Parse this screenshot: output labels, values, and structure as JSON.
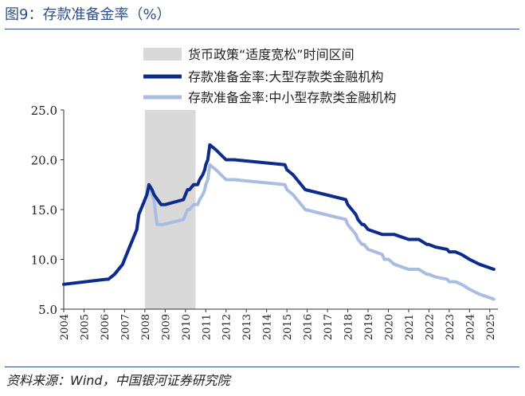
{
  "header": {
    "title": "图9：存款准备金率（%）"
  },
  "footer": {
    "source": "资料来源：Wind，中国银河证券研究院"
  },
  "chart_data": {
    "type": "line",
    "title": "",
    "xlabel": "",
    "ylabel": "",
    "ylim": [
      5,
      25
    ],
    "xlim": [
      2004,
      2025.4
    ],
    "y_ticks": [
      "5.0",
      "10.0",
      "15.0",
      "20.0",
      "25.0"
    ],
    "x_ticks": [
      "2004",
      "2005",
      "2006",
      "2007",
      "2008",
      "2009",
      "2010",
      "2011",
      "2012",
      "2013",
      "2014",
      "2015",
      "2016",
      "2017",
      "2018",
      "2019",
      "2020",
      "2021",
      "2022",
      "2023",
      "2024",
      "2025"
    ],
    "shaded_region": {
      "label": "货币政策“适度宽松”时间区间",
      "x_range": [
        2008.0,
        2010.5
      ],
      "color": "#d9d9d9"
    },
    "legend_position": "top",
    "series": [
      {
        "name": "存款准备金率:大型存款类金融机构",
        "color": "#0d2b8a",
        "x": [
          2004.0,
          2006.1,
          2006.2,
          2006.5,
          2006.9,
          2007.1,
          2007.3,
          2007.4,
          2007.6,
          2007.7,
          2007.8,
          2008.0,
          2008.1,
          2008.2,
          2008.35,
          2008.45,
          2008.8,
          2009.0,
          2009.9,
          2010.0,
          2010.1,
          2010.2,
          2010.4,
          2010.6,
          2010.7,
          2010.85,
          2010.95,
          2011.0,
          2011.1,
          2011.2,
          2011.5,
          2012.0,
          2012.4,
          2014.9,
          2015.0,
          2015.3,
          2015.5,
          2015.7,
          2015.9,
          2017.9,
          2018.0,
          2018.2,
          2018.4,
          2018.5,
          2018.7,
          2018.8,
          2019.0,
          2019.7,
          2019.8,
          2020.0,
          2020.3,
          2021.0,
          2021.5,
          2021.9,
          2022.0,
          2022.3,
          2022.9,
          2023.0,
          2023.3,
          2023.6,
          2024.0,
          2024.5,
          2025.2
        ],
        "values": [
          7.5,
          8.0,
          8.0,
          8.5,
          9.5,
          10.5,
          11.5,
          12.0,
          13.0,
          14.5,
          15.0,
          16.0,
          16.5,
          17.5,
          17.0,
          16.5,
          15.5,
          15.5,
          16.0,
          16.5,
          17.0,
          17.0,
          17.5,
          17.5,
          18.0,
          18.5,
          19.0,
          19.5,
          20.0,
          21.5,
          21.0,
          20.0,
          20.0,
          19.5,
          19.0,
          18.5,
          18.0,
          17.5,
          17.0,
          16.0,
          15.5,
          15.0,
          14.5,
          14.0,
          13.5,
          13.5,
          13.0,
          12.5,
          12.5,
          12.5,
          12.5,
          12.0,
          12.0,
          11.5,
          11.5,
          11.25,
          11.0,
          10.75,
          10.75,
          10.5,
          10.0,
          9.5,
          9.0
        ]
      },
      {
        "name": "存款准备金率:中小型存款类金融机构",
        "color": "#a9bde3",
        "x": [
          2004.0,
          2006.1,
          2006.2,
          2006.5,
          2006.9,
          2007.1,
          2007.3,
          2007.4,
          2007.6,
          2007.7,
          2007.8,
          2008.0,
          2008.1,
          2008.2,
          2008.35,
          2008.45,
          2008.6,
          2008.9,
          2009.9,
          2010.0,
          2010.1,
          2010.2,
          2010.4,
          2010.6,
          2010.7,
          2010.85,
          2010.95,
          2011.0,
          2011.1,
          2011.2,
          2011.5,
          2012.0,
          2012.4,
          2014.9,
          2015.0,
          2015.3,
          2015.5,
          2015.7,
          2015.9,
          2017.9,
          2018.0,
          2018.2,
          2018.4,
          2018.5,
          2018.7,
          2018.8,
          2019.0,
          2019.7,
          2019.8,
          2020.0,
          2020.3,
          2021.0,
          2021.5,
          2021.9,
          2022.0,
          2022.3,
          2022.9,
          2023.0,
          2023.3,
          2023.6,
          2024.0,
          2024.5,
          2025.2
        ],
        "values": [
          7.5,
          8.0,
          8.0,
          8.5,
          9.5,
          10.5,
          11.5,
          12.0,
          13.0,
          14.5,
          15.0,
          16.0,
          16.5,
          17.5,
          16.5,
          16.0,
          13.5,
          13.5,
          14.0,
          14.5,
          15.0,
          15.0,
          15.5,
          15.5,
          16.0,
          16.5,
          17.0,
          17.5,
          18.0,
          19.5,
          19.0,
          18.0,
          18.0,
          17.5,
          17.0,
          16.5,
          16.0,
          15.5,
          15.0,
          14.0,
          13.5,
          13.0,
          12.5,
          12.0,
          11.5,
          11.5,
          11.0,
          10.5,
          10.0,
          10.0,
          9.5,
          9.0,
          9.0,
          8.5,
          8.5,
          8.25,
          8.0,
          7.75,
          7.75,
          7.5,
          7.0,
          6.5,
          6.0
        ]
      }
    ]
  }
}
